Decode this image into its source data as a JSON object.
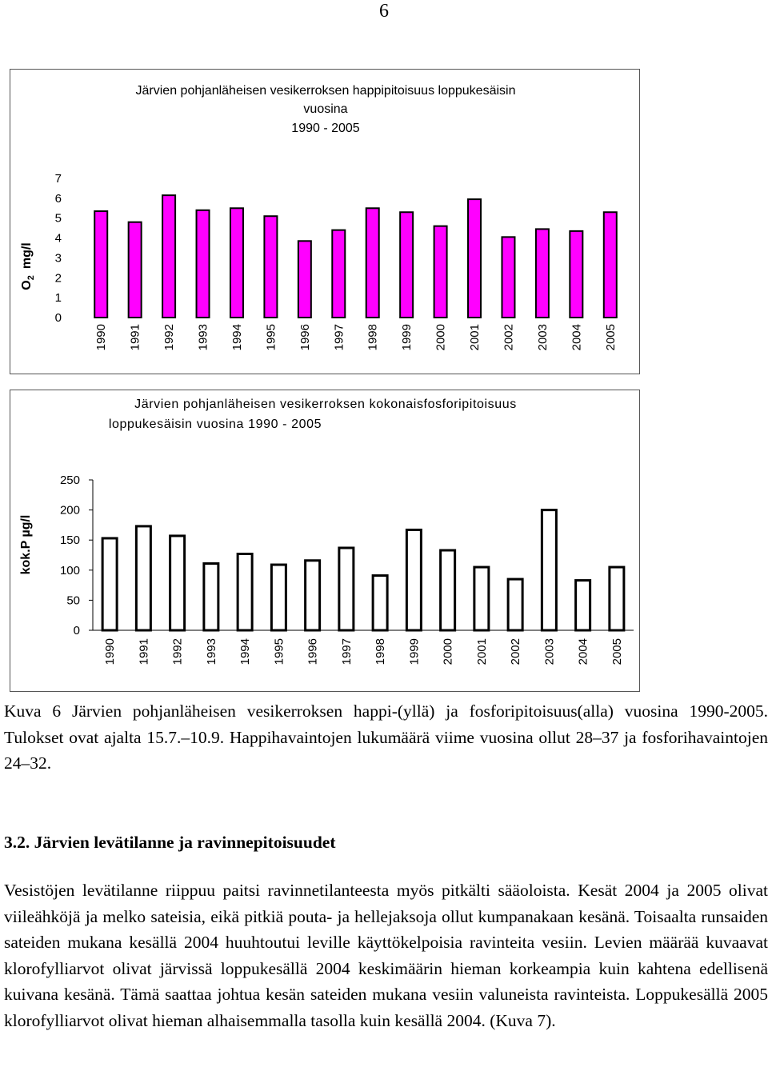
{
  "page_number": "6",
  "chart_data": [
    {
      "type": "bar",
      "title": [
        "Järvien pohjanläheisen vesikerroksen happipitoisuus loppukesäisin",
        "vuosina",
        "1990 - 2005"
      ],
      "ylabel_main": "O",
      "ylabel_sub": "2",
      "ylabel_unit": "mg/l",
      "categories": [
        "1990",
        "1991",
        "1992",
        "1993",
        "1994",
        "1995",
        "1996",
        "1997",
        "1998",
        "1999",
        "2000",
        "2001",
        "2002",
        "2003",
        "2004",
        "2005"
      ],
      "values": [
        5.35,
        4.8,
        6.15,
        5.4,
        5.5,
        5.1,
        3.85,
        4.4,
        5.5,
        5.3,
        4.6,
        5.95,
        4.05,
        4.45,
        4.35,
        5.3
      ],
      "ylim": [
        0,
        7
      ],
      "yticks": [
        "0",
        "1",
        "2",
        "3",
        "4",
        "5",
        "6",
        "7"
      ],
      "bar_color": "#ff00ff",
      "grid": false,
      "legend": "none"
    },
    {
      "type": "bar",
      "title": [
        "Järvien pohjanläheisen vesikerroksen kokonaisfosforipitoisuus",
        "loppukesäisin vuosina 1990 - 2005"
      ],
      "ylabel": "kok.P µg/l",
      "categories": [
        "1990",
        "1991",
        "1992",
        "1993",
        "1994",
        "1995",
        "1996",
        "1997",
        "1998",
        "1999",
        "2000",
        "2001",
        "2002",
        "2003",
        "2004",
        "2005"
      ],
      "values": [
        153,
        173,
        157,
        111,
        127,
        109,
        116,
        137,
        91,
        167,
        133,
        105,
        85,
        200,
        83,
        105
      ],
      "ylim": [
        0,
        250
      ],
      "yticks": [
        "0",
        "50",
        "100",
        "150",
        "200",
        "250"
      ],
      "bar_color": "#ffffff",
      "grid": false,
      "legend": "none"
    }
  ],
  "caption": "Kuva 6 Järvien pohjanläheisen vesikerroksen happi-(yllä) ja fosforipitoisuus(alla) vuosina 1990-2005. Tulokset ovat ajalta 15.7.–10.9. Happihavaintojen lukumäärä viime vuosina ollut 28–37 ja fosforihavaintojen 24–32.",
  "section_heading": "3.2. Järvien levätilanne ja ravinnepitoisuudet",
  "paragraph": "Vesistöjen levätilanne riippuu paitsi ravinnetilanteesta myös pitkälti sääoloista. Kesät 2004 ja 2005 olivat viileähköjä ja melko sateisia, eikä pitkiä pouta- ja hellejaksoja ollut kumpanakaan kesänä. Toisaalta runsaiden sateiden mukana kesällä 2004 huuhtoutui leville käyttökelpoisia ravinteita vesiin. Levien määrää kuvaavat klorofylliarvot olivat järvissä loppukesällä 2004 keskimäärin hieman korkeampia kuin kahtena edellisenä kuivana kesänä. Tämä saattaa johtua kesän sateiden mukana vesiin valuneista ravinteista. Loppukesällä 2005 klorofylliarvot olivat hieman alhaisemmalla tasolla kuin kesällä 2004. (Kuva 7)."
}
